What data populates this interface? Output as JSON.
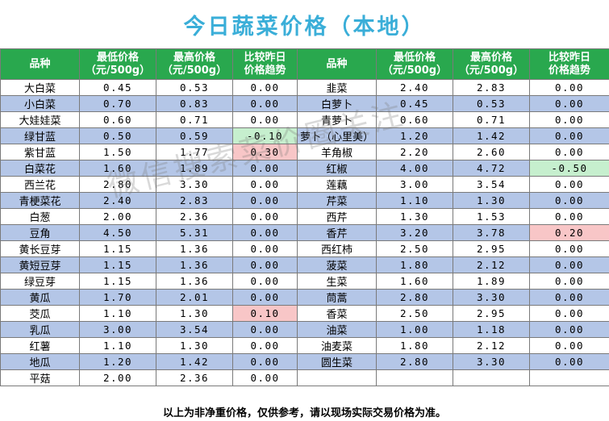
{
  "title": "今日蔬菜价格（本地）",
  "headers": {
    "variety": "品种",
    "min_line1": "最低价格",
    "min_line2": "（元/500g）",
    "max_line1": "最高价格",
    "max_line2": "（元/500g）",
    "trend_line1": "比较昨日",
    "trend_line2": "价格趋势"
  },
  "left_rows": [
    {
      "name": "大白菜",
      "min": "0.45",
      "max": "0.53",
      "change": "0.00"
    },
    {
      "name": "小白菜",
      "min": "0.70",
      "max": "0.83",
      "change": "0.00"
    },
    {
      "name": "大娃娃菜",
      "min": "0.60",
      "max": "0.71",
      "change": "0.00"
    },
    {
      "name": "绿甘蓝",
      "min": "0.50",
      "max": "0.59",
      "change": "-0.10"
    },
    {
      "name": "紫甘蓝",
      "min": "1.50",
      "max": "1.77",
      "change": "0.30"
    },
    {
      "name": "白菜花",
      "min": "1.60",
      "max": "1.89",
      "change": "0.00"
    },
    {
      "name": "西兰花",
      "min": "2.80",
      "max": "3.30",
      "change": "0.00"
    },
    {
      "name": "青梗菜花",
      "min": "2.40",
      "max": "2.83",
      "change": "0.00"
    },
    {
      "name": "白葱",
      "min": "2.00",
      "max": "2.36",
      "change": "0.00"
    },
    {
      "name": "豆角",
      "min": "4.50",
      "max": "5.31",
      "change": "0.00"
    },
    {
      "name": "黄长豆芽",
      "min": "1.15",
      "max": "1.36",
      "change": "0.00"
    },
    {
      "name": "黄短豆芽",
      "min": "1.15",
      "max": "1.36",
      "change": "0.00"
    },
    {
      "name": "绿豆芽",
      "min": "1.15",
      "max": "1.36",
      "change": "0.00"
    },
    {
      "name": "黄瓜",
      "min": "1.70",
      "max": "2.01",
      "change": "0.00"
    },
    {
      "name": "茭瓜",
      "min": "1.10",
      "max": "1.30",
      "change": "0.10"
    },
    {
      "name": "乳瓜",
      "min": "3.00",
      "max": "3.54",
      "change": "0.00"
    },
    {
      "name": "红薯",
      "min": "1.10",
      "max": "1.30",
      "change": "0.00"
    },
    {
      "name": "地瓜",
      "min": "1.20",
      "max": "1.42",
      "change": "0.00"
    },
    {
      "name": "平菇",
      "min": "2.00",
      "max": "2.36",
      "change": "0.00"
    }
  ],
  "right_rows": [
    {
      "name": "韭菜",
      "min": "2.40",
      "max": "2.83",
      "change": "0.00"
    },
    {
      "name": "白萝卜",
      "min": "0.45",
      "max": "0.53",
      "change": "0.00"
    },
    {
      "name": "青萝卜",
      "min": "0.60",
      "max": "0.71",
      "change": "0.00"
    },
    {
      "name": "萝卜（心里美）",
      "min": "1.20",
      "max": "1.42",
      "change": "0.00"
    },
    {
      "name": "羊角椒",
      "min": "2.20",
      "max": "2.60",
      "change": "0.00"
    },
    {
      "name": "红椒",
      "min": "4.00",
      "max": "4.72",
      "change": "-0.50"
    },
    {
      "name": "莲藕",
      "min": "3.00",
      "max": "3.54",
      "change": "0.00"
    },
    {
      "name": "芹菜",
      "min": "1.10",
      "max": "1.30",
      "change": "0.00"
    },
    {
      "name": "西芹",
      "min": "1.30",
      "max": "1.53",
      "change": "0.00"
    },
    {
      "name": "香芹",
      "min": "3.20",
      "max": "3.78",
      "change": "0.20"
    },
    {
      "name": "西红柿",
      "min": "2.50",
      "max": "2.95",
      "change": "0.00"
    },
    {
      "name": "菠菜",
      "min": "1.80",
      "max": "2.12",
      "change": "0.00"
    },
    {
      "name": "生菜",
      "min": "1.60",
      "max": "1.89",
      "change": "0.00"
    },
    {
      "name": "茼蒿",
      "min": "2.80",
      "max": "3.30",
      "change": "0.00"
    },
    {
      "name": "香菜",
      "min": "2.50",
      "max": "2.95",
      "change": "0.00"
    },
    {
      "name": "油菜",
      "min": "1.00",
      "max": "1.18",
      "change": "0.00"
    },
    {
      "name": "油麦菜",
      "min": "1.80",
      "max": "2.12",
      "change": "0.00"
    },
    {
      "name": "圆生菜",
      "min": "2.80",
      "max": "3.30",
      "change": "0.00"
    },
    {
      "name": "",
      "min": "",
      "max": "",
      "change": ""
    }
  ],
  "footer": "以上为非净重价格，仅供参考，请以现场实际交易价格为准。",
  "watermark": "微信搜索菜价圈关注",
  "colors": {
    "title": "#3aaed8",
    "header_bg": "#29a84e",
    "row_alt": "#b4c6e7",
    "increase_bg": "#f8c6c7",
    "decrease_bg": "#c6efce"
  }
}
